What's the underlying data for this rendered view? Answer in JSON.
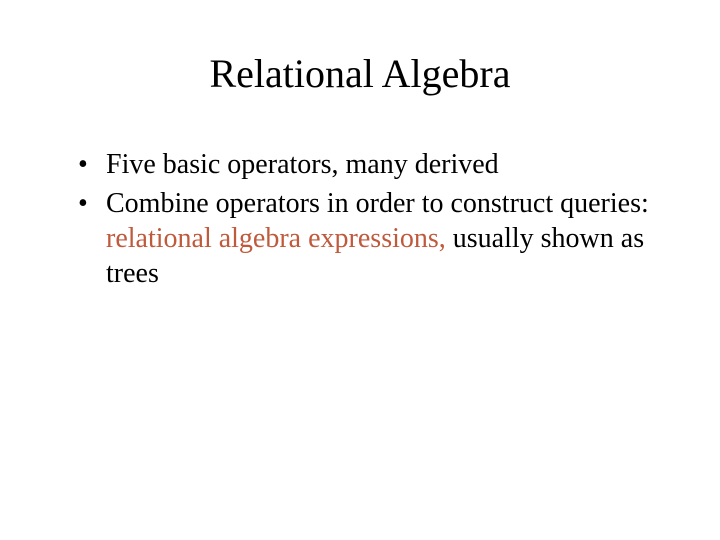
{
  "slide": {
    "title": "Relational Algebra",
    "title_fontsize": 40,
    "body_fontsize": 28,
    "background_color": "#ffffff",
    "text_color": "#000000",
    "highlight_color": "#c05a3c",
    "font_family": "Times New Roman",
    "bullets": [
      {
        "segments": [
          {
            "text": "Five basic operators, many derived",
            "highlight": false
          }
        ]
      },
      {
        "segments": [
          {
            "text": "Combine operators in order to construct queries:  ",
            "highlight": false
          },
          {
            "text": "relational algebra expressions,",
            "highlight": true
          },
          {
            "text": " usually shown as trees",
            "highlight": false
          }
        ]
      }
    ]
  }
}
